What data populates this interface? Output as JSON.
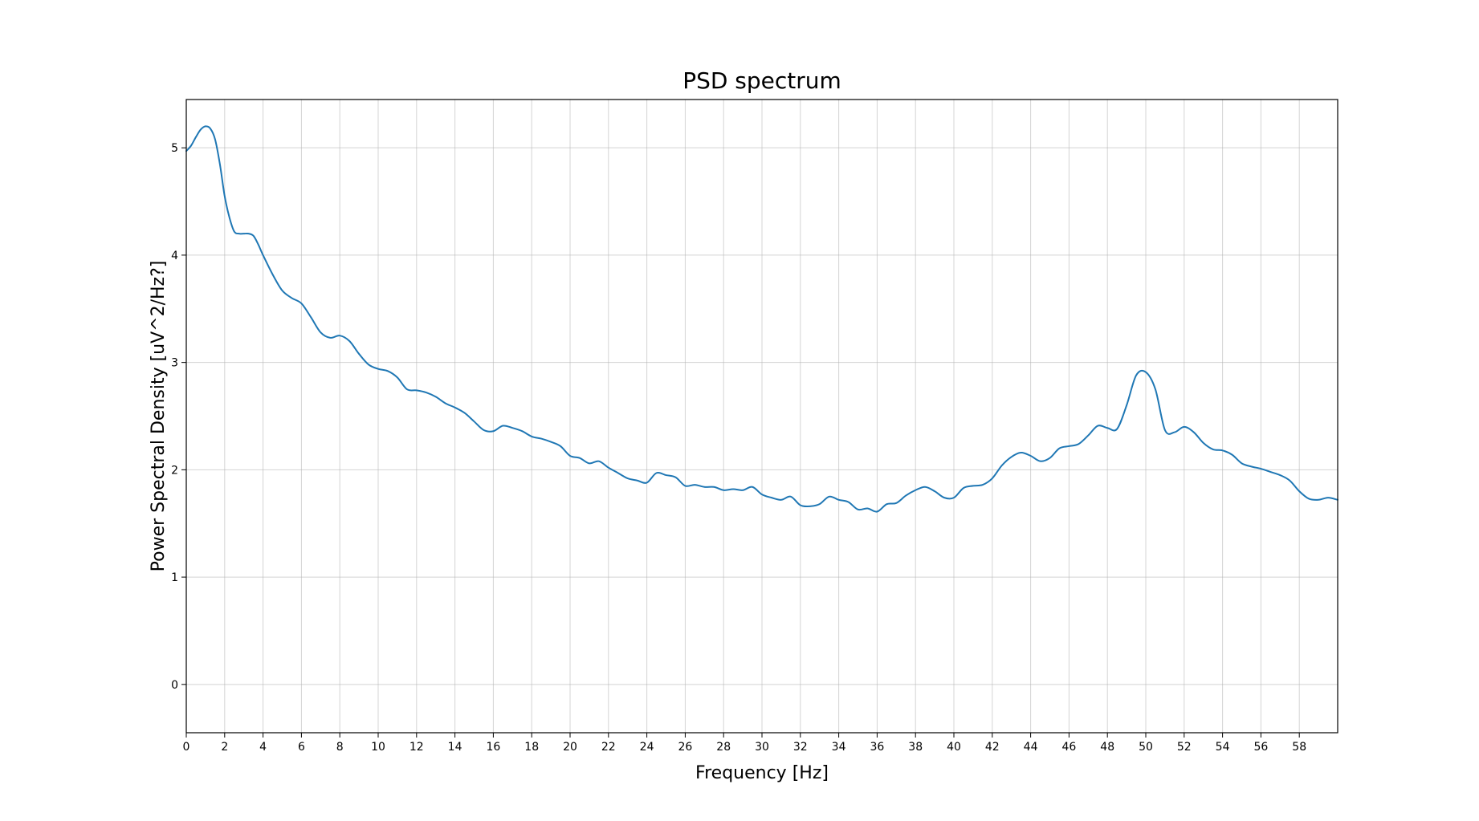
{
  "chart_data": {
    "type": "line",
    "title": "PSD spectrum",
    "xlabel": "Frequency [Hz]",
    "ylabel": "Power Spectral Density [uV^2/Hz?]",
    "xlim": [
      0,
      60
    ],
    "ylim": [
      -0.45,
      5.45
    ],
    "x_ticks": [
      "0",
      "2",
      "4",
      "6",
      "8",
      "10",
      "12",
      "14",
      "16",
      "18",
      "20",
      "22",
      "24",
      "26",
      "28",
      "30",
      "32",
      "34",
      "36",
      "38",
      "40",
      "42",
      "44",
      "46",
      "48",
      "50",
      "52",
      "54",
      "56",
      "58"
    ],
    "y_ticks": [
      "0",
      "1",
      "2",
      "3",
      "4",
      "5"
    ],
    "grid": true,
    "legend": "none",
    "series": [
      {
        "color": "#1f77b4",
        "x": [
          0,
          0.25,
          0.5,
          0.75,
          1.0,
          1.25,
          1.5,
          1.75,
          2.0,
          2.25,
          2.5,
          2.75,
          3.0,
          3.25,
          3.5,
          3.75,
          4.0,
          4.5,
          5.0,
          5.5,
          6.0,
          6.5,
          7.0,
          7.5,
          8.0,
          8.5,
          9.0,
          9.5,
          10.0,
          10.5,
          11.0,
          11.5,
          12.0,
          12.5,
          13.0,
          13.5,
          14.0,
          14.5,
          15.0,
          15.5,
          16.0,
          16.5,
          17.0,
          17.5,
          18.0,
          18.5,
          19.0,
          19.5,
          20.0,
          20.5,
          21.0,
          21.5,
          22.0,
          22.5,
          23.0,
          23.5,
          24.0,
          24.5,
          25.0,
          25.5,
          26.0,
          26.5,
          27.0,
          27.5,
          28.0,
          28.5,
          29.0,
          29.5,
          30.0,
          30.5,
          31.0,
          31.5,
          32.0,
          32.5,
          33.0,
          33.5,
          34.0,
          34.5,
          35.0,
          35.5,
          36.0,
          36.5,
          37.0,
          37.5,
          38.0,
          38.5,
          39.0,
          39.5,
          40.0,
          40.5,
          41.0,
          41.5,
          42.0,
          42.5,
          43.0,
          43.5,
          44.0,
          44.5,
          45.0,
          45.5,
          46.0,
          46.5,
          47.0,
          47.5,
          48.0,
          48.5,
          49.0,
          49.5,
          50.0,
          50.5,
          51.0,
          51.5,
          52.0,
          52.5,
          53.0,
          53.5,
          54.0,
          54.5,
          55.0,
          55.5,
          56.0,
          56.5,
          57.0,
          57.5,
          58.0,
          58.5,
          59.0,
          59.5,
          60.0
        ],
        "y": [
          4.97,
          5.02,
          5.1,
          5.17,
          5.2,
          5.18,
          5.08,
          4.85,
          4.55,
          4.35,
          4.22,
          4.2,
          4.2,
          4.2,
          4.18,
          4.1,
          4.0,
          3.82,
          3.67,
          3.6,
          3.55,
          3.42,
          3.28,
          3.23,
          3.25,
          3.2,
          3.08,
          2.98,
          2.94,
          2.92,
          2.86,
          2.75,
          2.74,
          2.72,
          2.68,
          2.62,
          2.58,
          2.53,
          2.45,
          2.37,
          2.36,
          2.41,
          2.39,
          2.36,
          2.31,
          2.29,
          2.26,
          2.22,
          2.13,
          2.11,
          2.06,
          2.08,
          2.02,
          1.97,
          1.92,
          1.9,
          1.88,
          1.97,
          1.95,
          1.93,
          1.85,
          1.86,
          1.84,
          1.84,
          1.81,
          1.82,
          1.81,
          1.84,
          1.77,
          1.74,
          1.72,
          1.75,
          1.67,
          1.66,
          1.68,
          1.75,
          1.72,
          1.7,
          1.63,
          1.64,
          1.61,
          1.68,
          1.69,
          1.76,
          1.81,
          1.84,
          1.8,
          1.74,
          1.74,
          1.83,
          1.85,
          1.86,
          1.92,
          2.04,
          2.12,
          2.16,
          2.13,
          2.08,
          2.11,
          2.2,
          2.22,
          2.24,
          2.32,
          2.41,
          2.39,
          2.38,
          2.6,
          2.88,
          2.91,
          2.75,
          2.37,
          2.35,
          2.4,
          2.35,
          2.25,
          2.19,
          2.18,
          2.14,
          2.06,
          2.03,
          2.01,
          1.98,
          1.95,
          1.9,
          1.8,
          1.73,
          1.72,
          1.74,
          1.72
        ]
      }
    ]
  }
}
